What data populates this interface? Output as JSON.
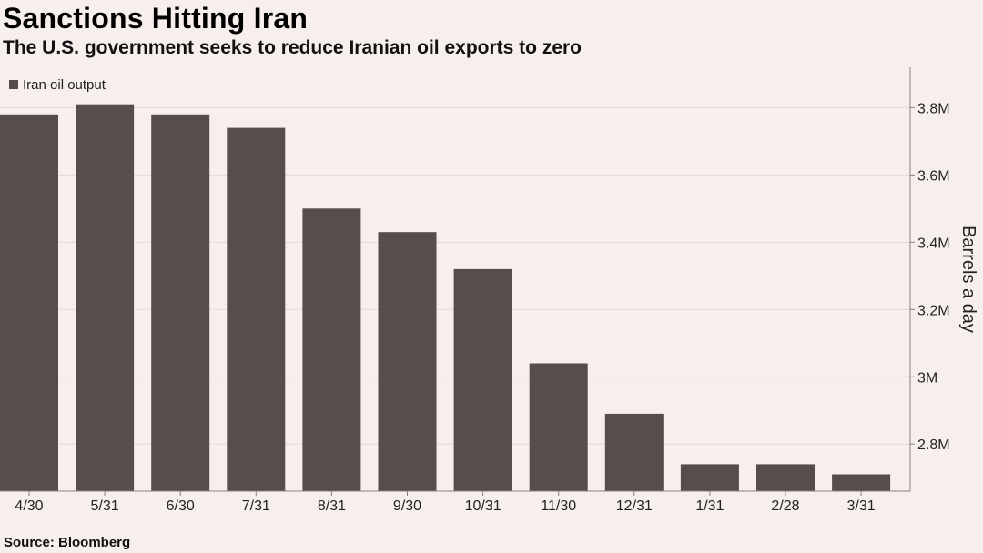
{
  "chart_data": {
    "type": "bar",
    "title": "Sanctions Hitting Iran",
    "subtitle": "The U.S. government seeks to reduce Iranian oil exports to zero",
    "source": "Source: Bloomberg",
    "legend": {
      "label": "Iran oil output",
      "position": "top-left"
    },
    "ylabel": "Barrels a day",
    "xlabel": "",
    "categories": [
      "4/30",
      "5/31",
      "6/30",
      "7/31",
      "8/31",
      "9/30",
      "10/31",
      "11/30",
      "12/31",
      "1/31",
      "2/28",
      "3/31"
    ],
    "series": [
      {
        "name": "Iran oil output",
        "values": [
          3.78,
          3.81,
          3.78,
          3.74,
          3.5,
          3.43,
          3.32,
          3.04,
          2.89,
          2.74,
          2.74,
          2.71
        ]
      }
    ],
    "ylim": [
      2.66,
      3.92
    ],
    "y_ticks": [
      2.8,
      3.0,
      3.2,
      3.4,
      3.6,
      3.8
    ],
    "y_tick_labels": [
      "2.8M",
      "3M",
      "3.2M",
      "3.4M",
      "3.6M",
      "3.8M"
    ],
    "y_axis_side": "right",
    "grid": true,
    "colors": {
      "bar": "#574d4a",
      "background": "#f7efec",
      "grid": "#e3dad7"
    }
  }
}
